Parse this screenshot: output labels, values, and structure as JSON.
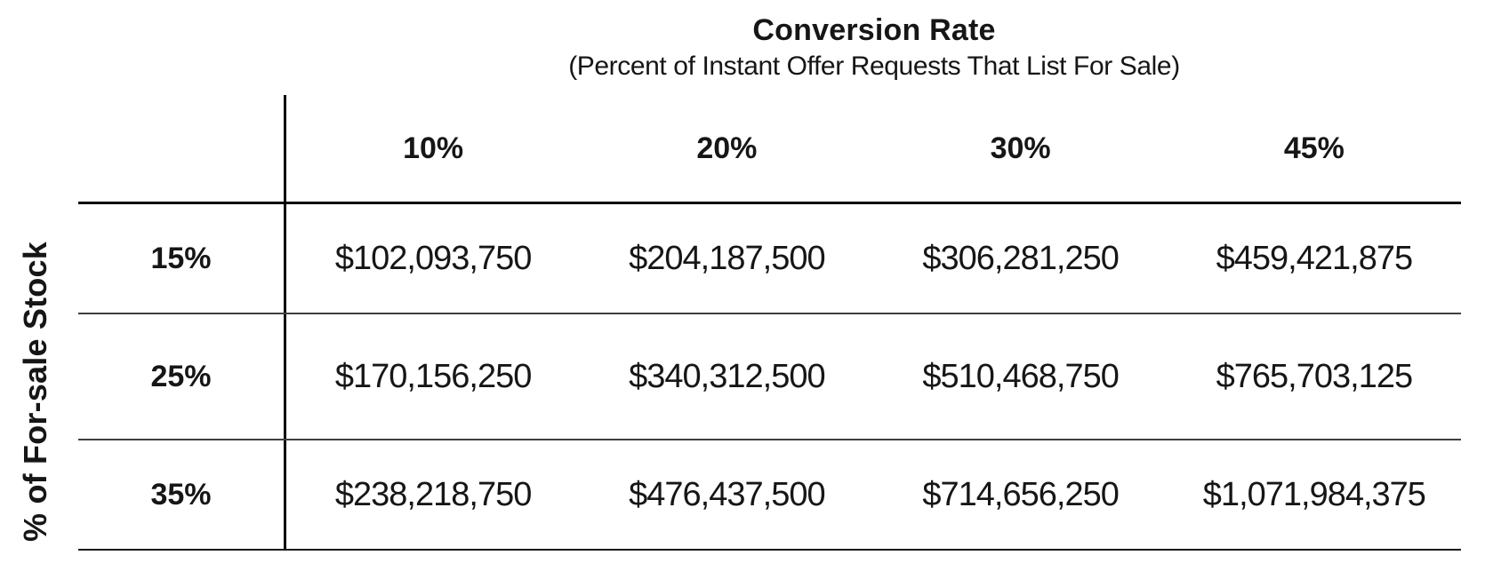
{
  "header": {
    "title": "Conversion Rate",
    "subtitle": "(Percent of Instant Offer Requests That List For Sale)"
  },
  "colors": {
    "text": "#161616",
    "strong_line": "#000000",
    "light_line": "#3f3f3f",
    "background": "#ffffff"
  },
  "chart_data": {
    "type": "table",
    "title": "Conversion Rate",
    "subtitle": "(Percent of Instant Offer Requests That List For Sale)",
    "row_axis_label": "% of For-sale Stock",
    "column_axis_label": "Conversion Rate",
    "column_headers": [
      "10%",
      "20%",
      "30%",
      "45%"
    ],
    "row_headers": [
      "15%",
      "25%",
      "35%"
    ],
    "rows": [
      {
        "label": "15%",
        "values": [
          "$102,093,750",
          "$204,187,500",
          "$306,281,250",
          "$459,421,875"
        ]
      },
      {
        "label": "25%",
        "values": [
          "$170,156,250",
          "$340,312,500",
          "$510,468,750",
          "$765,703,125"
        ]
      },
      {
        "label": "35%",
        "values": [
          "$238,218,750",
          "$476,437,500",
          "$714,656,250",
          "$1,071,984,375"
        ]
      }
    ]
  }
}
